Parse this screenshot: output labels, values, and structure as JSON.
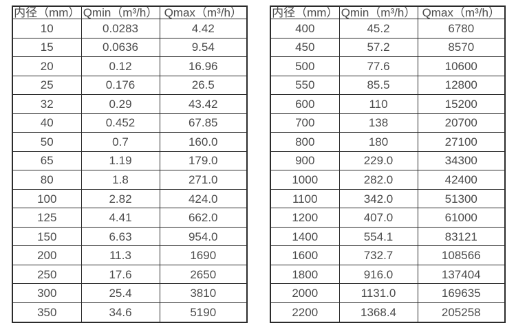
{
  "colors": {
    "background": "#ffffff",
    "border": "#2b2b2b",
    "text": "#4b4b4b"
  },
  "tables": [
    {
      "name": "flow-spec-small-diameters",
      "headers": [
        "内径（mm）",
        "Qmin（m³/h）",
        "Qmax（m³/h）"
      ],
      "rows": [
        [
          "10",
          "0.0283",
          "4.42"
        ],
        [
          "15",
          "0.0636",
          "9.54"
        ],
        [
          "20",
          "0.12",
          "16.96"
        ],
        [
          "25",
          "0.176",
          "26.5"
        ],
        [
          "32",
          "0.29",
          "43.42"
        ],
        [
          "40",
          "0.452",
          "67.85"
        ],
        [
          "50",
          "0.7",
          "160.0"
        ],
        [
          "65",
          "1.19",
          "179.0"
        ],
        [
          "80",
          "1.8",
          "271.0"
        ],
        [
          "100",
          "2.82",
          "424.0"
        ],
        [
          "125",
          "4.41",
          "662.0"
        ],
        [
          "150",
          "6.63",
          "954.0"
        ],
        [
          "200",
          "11.3",
          "1690"
        ],
        [
          "250",
          "17.6",
          "2650"
        ],
        [
          "300",
          "25.4",
          "3810"
        ],
        [
          "350",
          "34.6",
          "5190"
        ]
      ]
    },
    {
      "name": "flow-spec-large-diameters",
      "headers": [
        "内径（mm）",
        "Qmin（m³/h）",
        "Qmax（m³/h）"
      ],
      "rows": [
        [
          "400",
          "45.2",
          "6780"
        ],
        [
          "450",
          "57.2",
          "8570"
        ],
        [
          "500",
          "77.6",
          "10600"
        ],
        [
          "550",
          "85.5",
          "12800"
        ],
        [
          "600",
          "110",
          "15200"
        ],
        [
          "700",
          "138",
          "20700"
        ],
        [
          "800",
          "180",
          "27100"
        ],
        [
          "900",
          "229.0",
          "34300"
        ],
        [
          "1000",
          "282.0",
          "42400"
        ],
        [
          "1100",
          "342.0",
          "51300"
        ],
        [
          "1200",
          "407.0",
          "61000"
        ],
        [
          "1400",
          "554.1",
          "83121"
        ],
        [
          "1600",
          "732.7",
          "108566"
        ],
        [
          "1800",
          "916.0",
          "137404"
        ],
        [
          "2000",
          "1131.0",
          "169635"
        ],
        [
          "2200",
          "1368.4",
          "205258"
        ]
      ]
    }
  ]
}
